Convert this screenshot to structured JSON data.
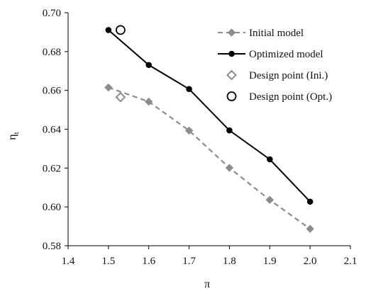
{
  "chart_data": {
    "type": "line",
    "xlabel": "π",
    "ylabel_main": "η",
    "ylabel_sub": "t",
    "xlim": [
      1.4,
      2.1
    ],
    "ylim": [
      0.58,
      0.7
    ],
    "xticks": [
      "1.4",
      "1.5",
      "1.6",
      "1.7",
      "1.8",
      "1.9",
      "2.0",
      "2.1"
    ],
    "yticks": [
      "0.58",
      "0.60",
      "0.62",
      "0.64",
      "0.66",
      "0.68",
      "0.70"
    ],
    "grid": false,
    "legend_position": "top-right",
    "series": [
      {
        "name": "Initial model",
        "line": "dashed",
        "marker": "diamond-filled",
        "color": "#8c8c8c",
        "x": [
          1.5,
          1.6,
          1.7,
          1.8,
          1.9,
          2.0
        ],
        "y": [
          0.6615,
          0.6542,
          0.6393,
          0.6201,
          0.6036,
          0.5887
        ]
      },
      {
        "name": "Optimized model",
        "line": "solid",
        "marker": "circle-filled",
        "color": "#000000",
        "x": [
          1.5,
          1.6,
          1.7,
          1.8,
          1.9,
          2.0
        ],
        "y": [
          0.6911,
          0.6731,
          0.6607,
          0.6394,
          0.6245,
          0.6027
        ]
      },
      {
        "name": "Design point (Ini.)",
        "line": "none",
        "marker": "diamond-open",
        "color": "#8c8c8c",
        "x": [
          1.53
        ],
        "y": [
          0.6565
        ]
      },
      {
        "name": "Design point (Opt.)",
        "line": "none",
        "marker": "circle-open",
        "color": "#000000",
        "x": [
          1.53
        ],
        "y": [
          0.6911
        ]
      }
    ]
  }
}
